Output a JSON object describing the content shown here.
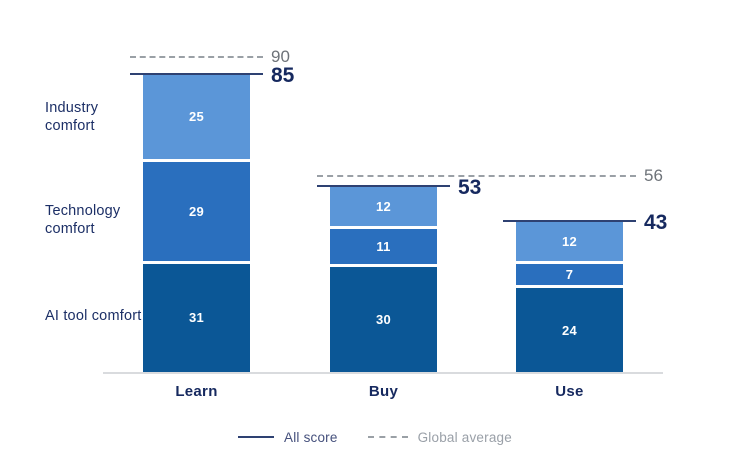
{
  "chart_data": {
    "type": "bar",
    "subtype": "stacked",
    "title": "",
    "categories": [
      "Learn",
      "Buy",
      "Use"
    ],
    "series": [
      {
        "name": "AI tool comfort",
        "values": [
          31,
          30,
          24
        ],
        "color": "#0b5796"
      },
      {
        "name": "Technology comfort",
        "values": [
          29,
          11,
          7
        ],
        "color": "#2a6fbe"
      },
      {
        "name": "Industry comfort",
        "values": [
          25,
          12,
          12
        ],
        "color": "#5b96d8"
      }
    ],
    "totals": [
      85,
      53,
      43
    ],
    "score_lines": [
      {
        "category": "Learn",
        "value": 85
      },
      {
        "category": "Buy",
        "value": 53
      },
      {
        "category": "Use",
        "value": 43
      }
    ],
    "global_average_lines": [
      {
        "value": 90,
        "categories": [
          "Learn"
        ]
      },
      {
        "value": 56,
        "categories": [
          "Buy",
          "Use"
        ]
      }
    ],
    "legend": [
      {
        "label": "All score",
        "style": "solid"
      },
      {
        "label": "Global average",
        "style": "dashed"
      }
    ],
    "ylim": [
      0,
      100
    ],
    "grid": false,
    "legend_position": "bottom"
  },
  "colors": {
    "navy_text": "#16295f",
    "score_line": "#2e4172",
    "gray_text": "#6e7379",
    "dashed_line": "#9aa0a6",
    "axis_line": "#d9dbde",
    "segment_gap": "#ffffff"
  }
}
